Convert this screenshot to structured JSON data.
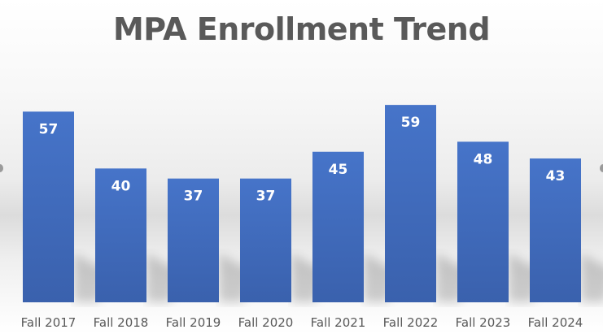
{
  "chart_data": {
    "type": "bar",
    "title": "MPA Enrollment Trend",
    "categories": [
      "Fall 2017",
      "Fall 2018",
      "Fall 2019",
      "Fall 2020",
      "Fall 2021",
      "Fall 2022",
      "Fall 2023",
      "Fall 2024"
    ],
    "values": [
      57,
      40,
      37,
      37,
      45,
      59,
      48,
      43
    ],
    "data_labels": true,
    "ylim": [
      0,
      60
    ],
    "grid": false,
    "bar_color": "#4472c4",
    "label_color": "#ffffff",
    "tick_label_color": "#595959"
  }
}
